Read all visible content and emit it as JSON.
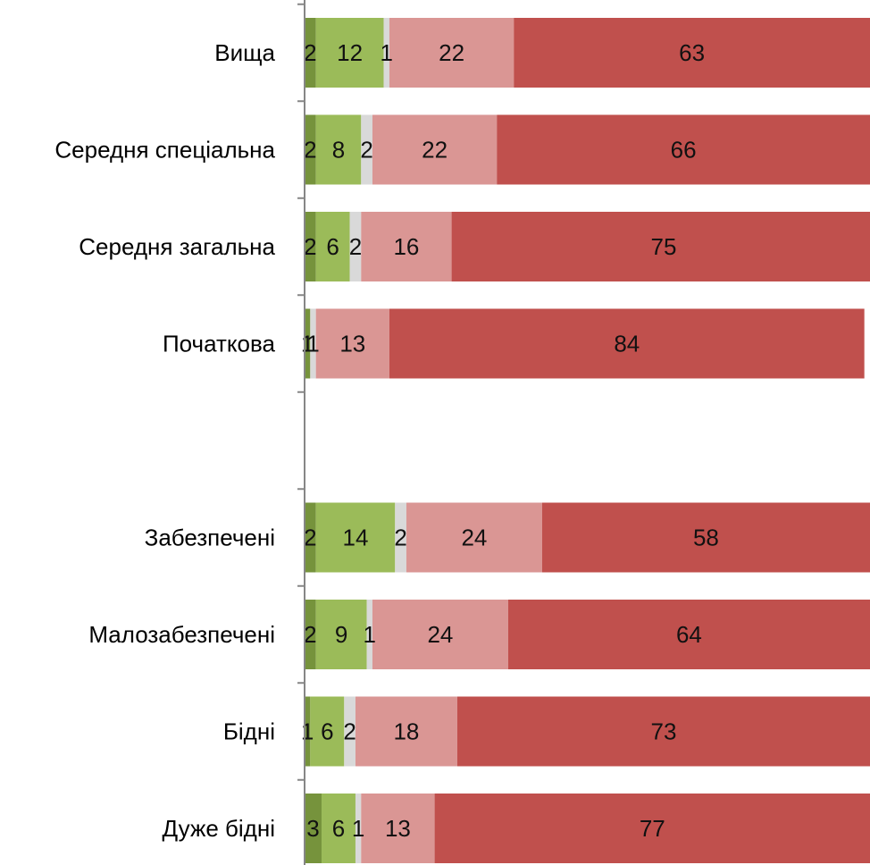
{
  "chart_data": {
    "type": "bar",
    "orientation": "horizontal",
    "stacked": true,
    "percent_scale": true,
    "categories": [
      "Вища",
      "Середня спеціальна",
      "Середня загальна",
      "Початкова",
      "",
      "Забезпечені",
      "Малозабезпечені",
      "Бідні",
      "Дуже бідні"
    ],
    "series": [
      {
        "color": "#76933c",
        "values": [
          2,
          2,
          2,
          1,
          null,
          2,
          2,
          1,
          3
        ],
        "labels": [
          "2",
          "2",
          "2",
          "1",
          "",
          "2",
          "2",
          "1",
          "3"
        ]
      },
      {
        "color": "#9bbb59",
        "values": [
          12,
          8,
          6,
          0,
          null,
          14,
          9,
          6,
          6
        ],
        "labels": [
          "12",
          "8",
          "6",
          "",
          "",
          "14",
          "9",
          "6",
          "6"
        ]
      },
      {
        "color": "#d9d9d9",
        "values": [
          1,
          2,
          2,
          1,
          null,
          2,
          1,
          2,
          1
        ],
        "labels": [
          "1",
          "2",
          "2",
          "1",
          "",
          "2",
          "1",
          "2",
          "1"
        ]
      },
      {
        "color": "#da9694",
        "values": [
          22,
          22,
          16,
          13,
          null,
          24,
          24,
          18,
          13
        ],
        "labels": [
          "22",
          "22",
          "16",
          "13",
          "",
          "24",
          "24",
          "18",
          "13"
        ]
      },
      {
        "color": "#c0504d",
        "values": [
          63,
          66,
          75,
          84,
          null,
          58,
          64,
          73,
          77
        ],
        "labels": [
          "63",
          "66",
          "75",
          "84",
          "",
          "58",
          "64",
          "73",
          "77"
        ]
      }
    ],
    "xlim": [
      0,
      100
    ],
    "grid": false,
    "legend": "none"
  }
}
